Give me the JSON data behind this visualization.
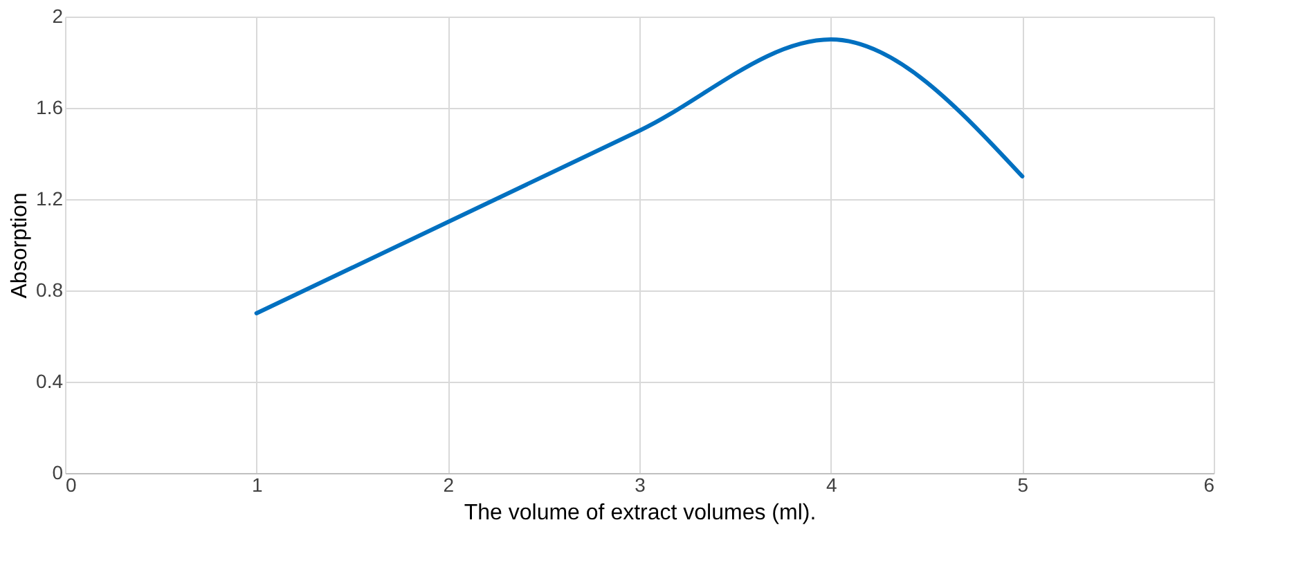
{
  "chart_data": {
    "type": "line",
    "xlabel": "The volume of extract volumes (ml).",
    "ylabel": "Absorption",
    "x": [
      1,
      2,
      3,
      4,
      5
    ],
    "series": [
      {
        "color": "#0070c0",
        "values": [
          0.7,
          1.1,
          1.5,
          1.9,
          1.3
        ]
      }
    ],
    "xlim": [
      0,
      6
    ],
    "xticks": [
      0,
      1,
      2,
      3,
      4,
      5,
      6
    ],
    "ylim": [
      0,
      2
    ],
    "yticks": [
      0,
      0.4,
      0.8,
      1.2,
      1.6,
      2
    ],
    "grid": true,
    "marker": "none",
    "line_style": "solid"
  }
}
